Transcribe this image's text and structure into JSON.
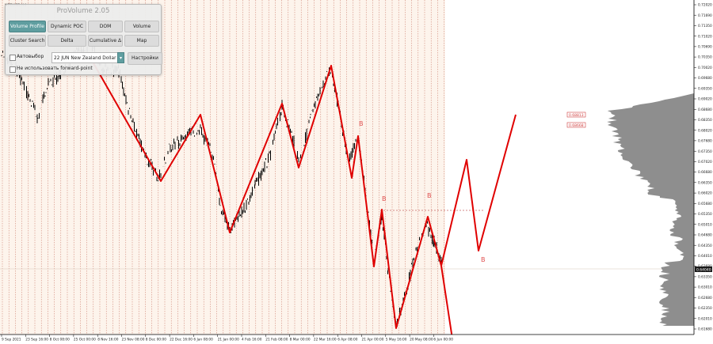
{
  "window": {
    "title": "NZDUSD,H4"
  },
  "panel": {
    "title": "ProVolume 2.05",
    "buttons": [
      {
        "label": "Volume Profile",
        "active": true
      },
      {
        "label": "Dynamic POC",
        "active": false
      },
      {
        "label": "DOM",
        "active": false
      },
      {
        "label": "Volume",
        "active": false
      },
      {
        "label": "Cluster Search",
        "active": false
      },
      {
        "label": "Delta",
        "active": false
      },
      {
        "label": "Cumulative Δ",
        "active": false
      },
      {
        "label": "Map",
        "active": false
      }
    ],
    "autoselect_label": "Автовыбор",
    "symbol_value": "22 JUN New Zealand Dollar",
    "settings_label": "Настройки",
    "forward_label": "Не использовать forward-point"
  },
  "price_axis": {
    "ticks": [
      "0.72020",
      "0.71690",
      "0.71350",
      "0.71020",
      "0.70690",
      "0.70350",
      "0.70020",
      "0.69680",
      "0.69350",
      "0.69020",
      "0.68680",
      "0.68350",
      "0.68020",
      "0.67680",
      "0.67350",
      "0.67020",
      "0.66680",
      "0.66350",
      "0.66020",
      "0.65680",
      "0.65350",
      "0.65010",
      "0.64680",
      "0.64350",
      "0.64010",
      "0.63680",
      "0.63350",
      "0.63010",
      "0.62680",
      "0.62350",
      "0.62010",
      "0.61680"
    ],
    "current_price": "0.64040"
  },
  "time_axis": {
    "labels": [
      "9 Sep 2021",
      "23 Sep 16:00",
      "8 Oct 08:00",
      "25 Oct 00:00",
      "8 Nov 16:00",
      "23 Nov 08:00",
      "8 Dec 00:00",
      "22 Dec 16:00",
      "6 Jan 08:00",
      "21 Jan 00:00",
      "4 Feb 16:00",
      "21 Feb 08:00",
      "8 Mar 00:00",
      "22 Mar 16:00",
      "6 Apr 08:00",
      "21 Apr 00:00",
      "5 May 16:00",
      "20 May 08:00",
      "6 Jun 00:00"
    ]
  },
  "levels": [
    {
      "label": "0.68813"
    },
    {
      "label": "0.68668"
    }
  ],
  "wave_labels": [
    "B",
    "B",
    "B",
    "B"
  ],
  "colors": {
    "wave": "#e00000",
    "grid": "#c87060",
    "profile": "#909090",
    "tag": "#d04040"
  }
}
